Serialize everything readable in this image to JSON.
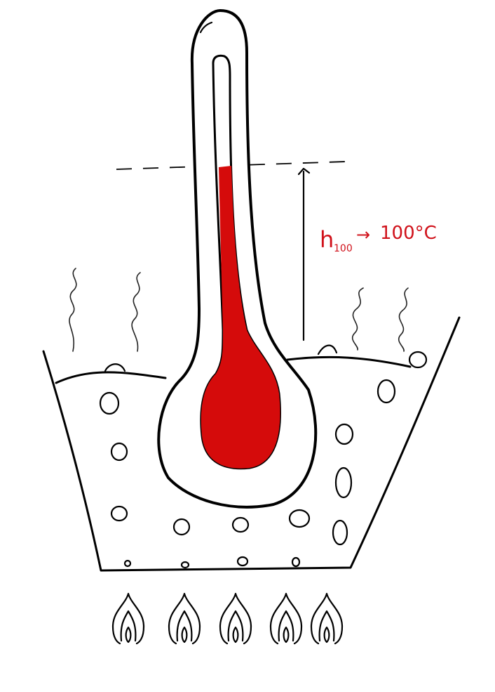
{
  "figure": {
    "label": {
      "symbol": "h",
      "subscript": "100",
      "arrow": "→",
      "value": "100°C"
    },
    "colors": {
      "mercury": "#d50b0b",
      "ink": "#000000",
      "label": "#d0111a",
      "background": "#ffffff"
    }
  }
}
